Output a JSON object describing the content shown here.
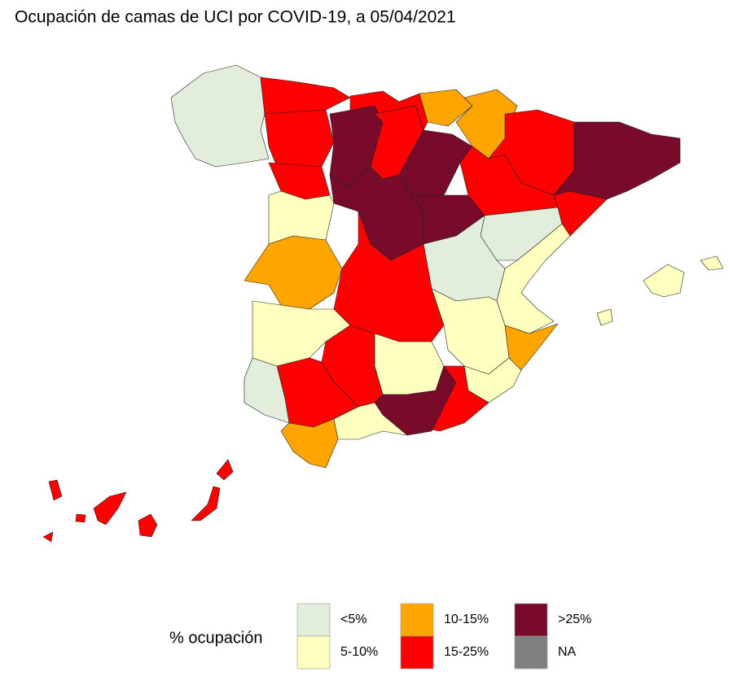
{
  "title": "Ocupación de camas de UCI por COVID-19, a 05/04/2021",
  "legend": {
    "title": "% ocupación",
    "items": [
      {
        "label": "<5%",
        "color": "#e2eedb"
      },
      {
        "label": "5-10%",
        "color": "#ffffc0"
      },
      {
        "label": "10-15%",
        "color": "#ffa500"
      },
      {
        "label": "15-25%",
        "color": "#ff0000"
      },
      {
        "label": ">25%",
        "color": "#780a2a"
      },
      {
        "label": "NA",
        "color": "#808080"
      }
    ]
  }
}
